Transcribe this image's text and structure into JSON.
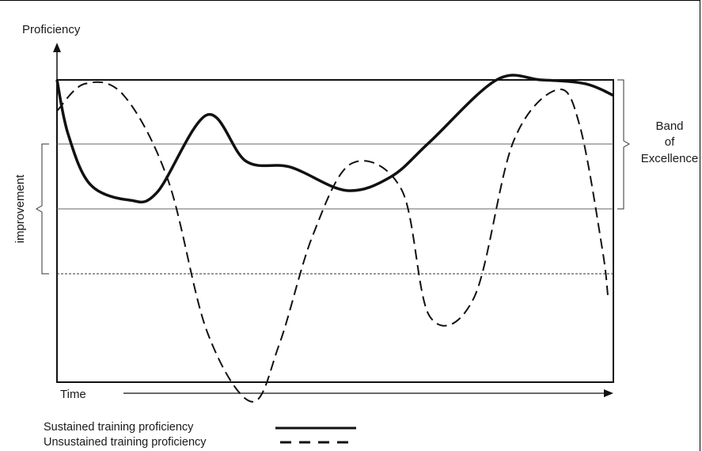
{
  "chart_data": {
    "type": "line",
    "ylabel": "Proficiency",
    "xlabel": "Time",
    "annotations": {
      "band_label": [
        "Band",
        "of",
        "Excellence"
      ],
      "improvement_label": "improvement"
    },
    "series": [
      {
        "name": "Sustained training proficiency",
        "style": "solid",
        "color": "#111111",
        "x": [
          0.0,
          0.02,
          0.06,
          0.13,
          0.18,
          0.27,
          0.34,
          0.42,
          0.52,
          0.6,
          0.67,
          0.79,
          0.87,
          0.95,
          1.0
        ],
        "y": [
          1.0,
          0.72,
          0.46,
          0.38,
          0.42,
          0.82,
          0.58,
          0.55,
          0.43,
          0.5,
          0.68,
          1.0,
          1.0,
          0.98,
          0.92
        ]
      },
      {
        "name": "Unsustained training proficiency",
        "style": "dashed",
        "color": "#111111",
        "x": [
          0.0,
          0.05,
          0.12,
          0.2,
          0.27,
          0.35,
          0.4,
          0.46,
          0.53,
          0.62,
          0.67,
          0.75,
          0.82,
          0.9,
          0.94,
          0.98,
          0.99
        ],
        "y": [
          0.84,
          0.98,
          0.92,
          0.48,
          -0.3,
          -0.66,
          -0.36,
          0.2,
          0.57,
          0.43,
          -0.22,
          -0.12,
          0.68,
          0.95,
          0.76,
          0.13,
          -0.11
        ]
      }
    ]
  },
  "legend": {
    "sustained_label": "Sustained training proficiency",
    "unsustained_label": "Unsustained training proficiency"
  }
}
